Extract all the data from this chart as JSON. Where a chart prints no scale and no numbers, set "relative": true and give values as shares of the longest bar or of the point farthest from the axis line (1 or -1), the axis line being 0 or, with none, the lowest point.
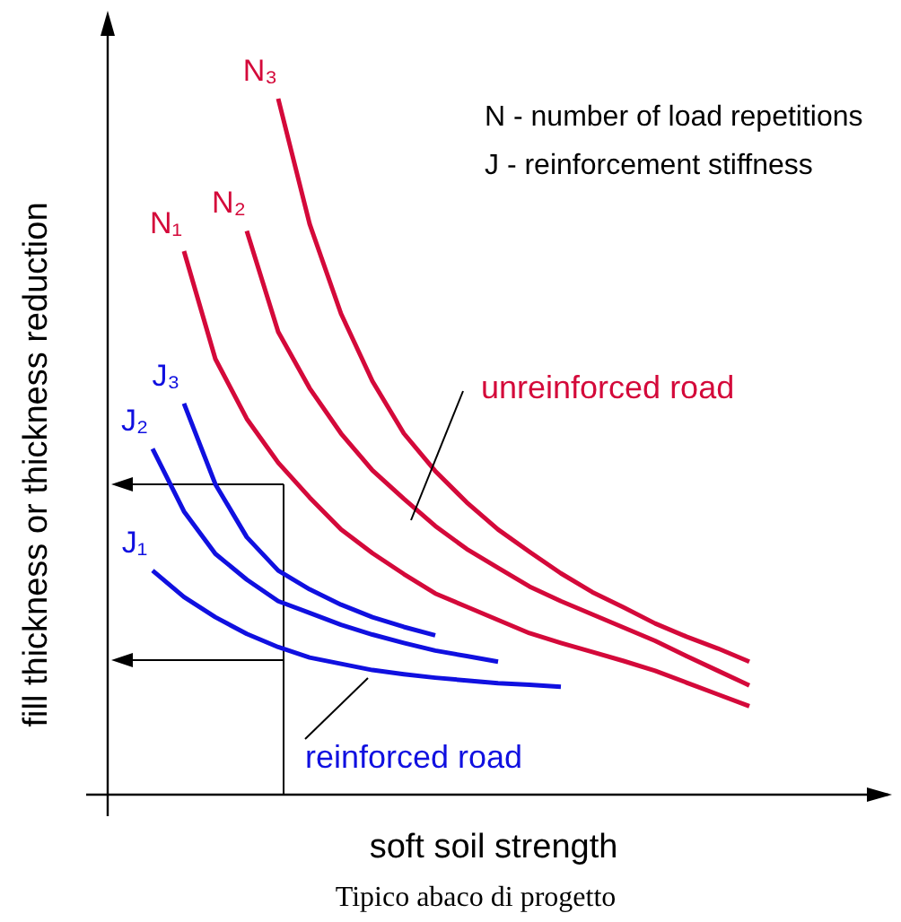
{
  "chart_data": {
    "type": "line",
    "relative": true,
    "xlabel": "soft soil strength",
    "ylabel": "fill thickness or thickness reduction",
    "marker": "none",
    "line_style": "solid",
    "categories": [
      null,
      null,
      null,
      null,
      null,
      null,
      null,
      null,
      null,
      null,
      null,
      null,
      null,
      null,
      null,
      null,
      null,
      null,
      null,
      null
    ],
    "series": [
      {
        "name": "N₃",
        "color": "#d4093a",
        "values": [
          null,
          null,
          null,
          null,
          1,
          0.82,
          0.691,
          0.594,
          0.519,
          0.465,
          0.42,
          0.381,
          0.349,
          0.318,
          0.291,
          0.269,
          0.246,
          0.227,
          0.21,
          0.191
        ]
      },
      {
        "name": "N₂",
        "color": "#d4093a",
        "values": [
          null,
          null,
          null,
          0.81,
          0.665,
          0.584,
          0.519,
          0.466,
          0.425,
          0.386,
          0.353,
          0.326,
          0.299,
          0.278,
          0.259,
          0.24,
          0.221,
          0.199,
          0.178,
          0.157
        ]
      },
      {
        "name": "N₁",
        "color": "#d4093a",
        "values": [
          null,
          0.781,
          0.626,
          0.54,
          0.477,
          0.427,
          0.381,
          0.347,
          0.317,
          0.289,
          0.27,
          0.251,
          0.232,
          0.218,
          0.205,
          0.192,
          0.178,
          0.161,
          0.144,
          0.127
        ]
      },
      {
        "name": "J₃",
        "color": "#1010e0",
        "values": [
          null,
          0.562,
          0.446,
          0.37,
          0.322,
          0.295,
          0.273,
          0.255,
          0.241,
          0.229,
          null,
          null,
          null,
          null,
          null,
          null,
          null,
          null,
          null,
          null
        ]
      },
      {
        "name": "J₂",
        "color": "#1010e0",
        "values": [
          0.497,
          0.407,
          0.346,
          0.309,
          0.278,
          0.261,
          0.244,
          0.23,
          0.218,
          0.207,
          0.199,
          0.191,
          null,
          null,
          null,
          null,
          null,
          null,
          null,
          null
        ]
      },
      {
        "name": "J₁",
        "color": "#1010e0",
        "values": [
          0.322,
          0.284,
          0.255,
          0.231,
          0.212,
          0.197,
          0.188,
          0.179,
          0.173,
          0.168,
          0.164,
          0.16,
          0.158,
          0.155,
          null,
          null,
          null,
          null,
          null,
          null
        ]
      }
    ],
    "annotations": [
      "unreinforced road",
      "reinforced road",
      "N - number of load repetitions",
      "J - reinforcement stiffness",
      "Tipico abaco di progetto"
    ]
  }
}
